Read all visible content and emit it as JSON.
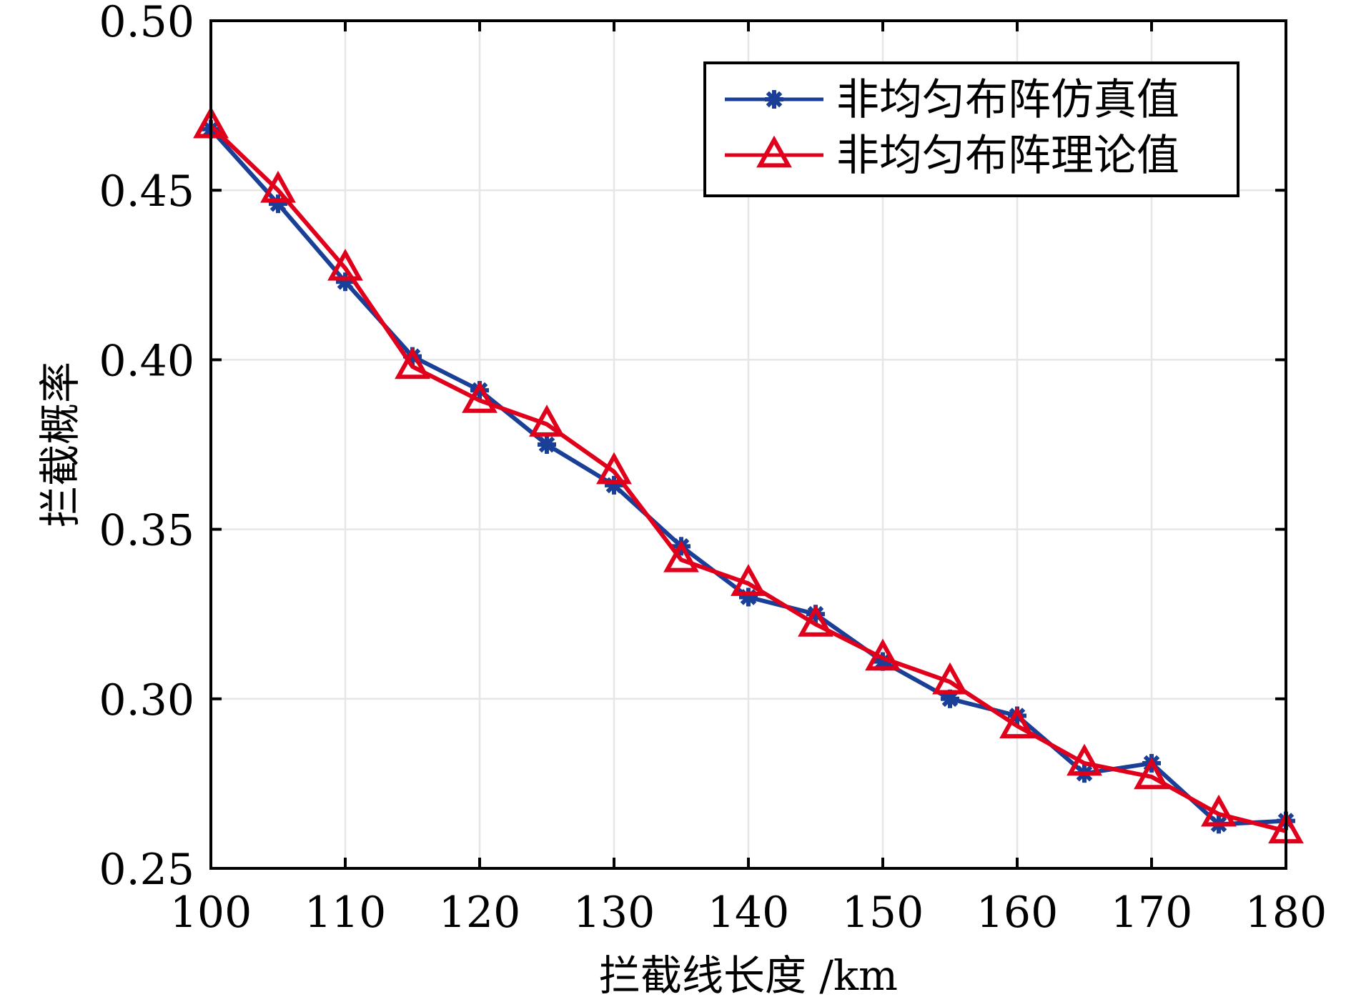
{
  "chart_data": {
    "type": "line",
    "title": "",
    "xlabel": "拦截线长度 /km",
    "ylabel": "拦截概率",
    "xlim": [
      100,
      180
    ],
    "ylim": [
      0.25,
      0.5
    ],
    "xticks": [
      100,
      110,
      120,
      130,
      140,
      150,
      160,
      170,
      180
    ],
    "xtick_labels": [
      "100",
      "110",
      "120",
      "130",
      "140",
      "150",
      "160",
      "170",
      "180"
    ],
    "yticks": [
      0.25,
      0.3,
      0.35,
      0.4,
      0.45,
      0.5
    ],
    "ytick_labels": [
      "0.25",
      "0.30",
      "0.35",
      "0.40",
      "0.45",
      "0.50"
    ],
    "grid": true,
    "legend_position": "top-right",
    "x": [
      100,
      105,
      110,
      115,
      120,
      125,
      130,
      135,
      140,
      145,
      150,
      155,
      160,
      165,
      170,
      175,
      180
    ],
    "series": [
      {
        "name": "非均匀布阵仿真值",
        "marker": "asterisk",
        "color": "#1a3f96",
        "values": [
          0.468,
          0.446,
          0.423,
          0.401,
          0.391,
          0.375,
          0.363,
          0.345,
          0.33,
          0.325,
          0.311,
          0.3,
          0.295,
          0.278,
          0.281,
          0.263,
          0.264
        ]
      },
      {
        "name": "非均匀布阵理论值",
        "marker": "triangle",
        "color": "#e0001b",
        "values": [
          0.469,
          0.45,
          0.427,
          0.398,
          0.388,
          0.381,
          0.367,
          0.341,
          0.334,
          0.322,
          0.312,
          0.305,
          0.292,
          0.281,
          0.277,
          0.266,
          0.261
        ]
      }
    ]
  }
}
